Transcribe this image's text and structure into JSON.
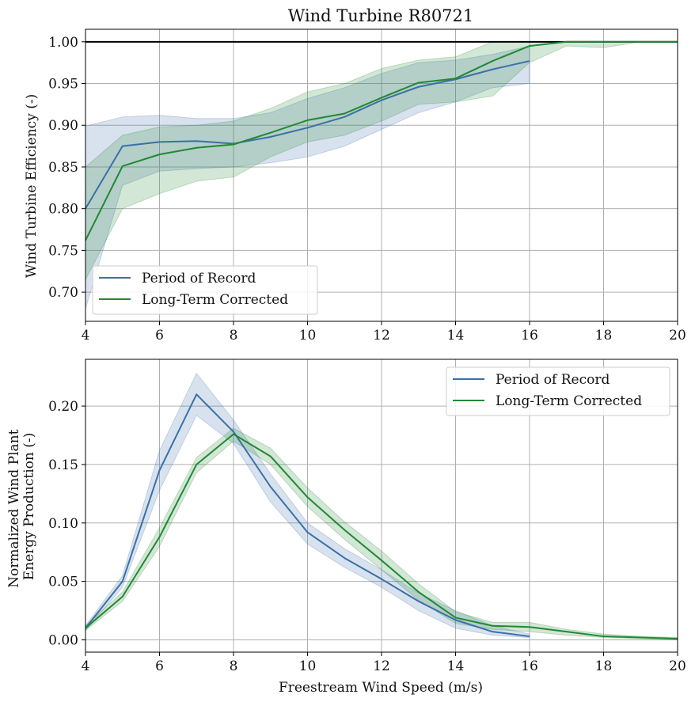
{
  "colors": {
    "period_of_record": "#3a70a8",
    "long_term_corrected": "#228833"
  },
  "chart_data": [
    {
      "type": "line",
      "title": "Wind Turbine R80721",
      "xlabel": "",
      "ylabel": "Wind Turbine Efficiency (-)",
      "xlim": [
        4,
        20
      ],
      "ylim": [
        0.665,
        1.015
      ],
      "xticks": [
        4,
        6,
        8,
        10,
        12,
        14,
        16,
        18,
        20
      ],
      "yticks": [
        0.7,
        0.75,
        0.8,
        0.85,
        0.9,
        0.95,
        1.0
      ],
      "xtick_labels": [
        "4",
        "6",
        "8",
        "10",
        "12",
        "14",
        "16",
        "18",
        "20"
      ],
      "ytick_labels": [
        "0.70",
        "0.75",
        "0.80",
        "0.85",
        "0.90",
        "0.95",
        "1.00"
      ],
      "grid": true,
      "reference_line_y": 1.0,
      "legend_position": "lower-left",
      "series": [
        {
          "name": "Period of Record",
          "color_key": "period_of_record",
          "x": [
            4,
            5,
            6,
            7,
            8,
            9,
            10,
            11,
            12,
            13,
            14,
            15,
            16
          ],
          "y": [
            0.8,
            0.875,
            0.88,
            0.881,
            0.878,
            0.886,
            0.897,
            0.91,
            0.93,
            0.946,
            0.955,
            0.967,
            0.977
          ],
          "lower": [
            0.68,
            0.828,
            0.845,
            0.848,
            0.85,
            0.855,
            0.862,
            0.875,
            0.895,
            0.915,
            0.928,
            0.945,
            0.95
          ],
          "upper": [
            0.899,
            0.91,
            0.912,
            0.908,
            0.908,
            0.915,
            0.932,
            0.945,
            0.962,
            0.975,
            0.978,
            0.985,
            0.995
          ]
        },
        {
          "name": "Long-Term Corrected",
          "color_key": "long_term_corrected",
          "x": [
            4,
            5,
            6,
            7,
            8,
            9,
            10,
            11,
            12,
            13,
            14,
            15,
            16,
            17,
            18,
            19,
            20
          ],
          "y": [
            0.762,
            0.851,
            0.865,
            0.873,
            0.877,
            0.891,
            0.906,
            0.914,
            0.933,
            0.951,
            0.956,
            0.977,
            0.995,
            1.0,
            1.0,
            1.0,
            1.0
          ],
          "lower": [
            0.715,
            0.8,
            0.818,
            0.833,
            0.838,
            0.862,
            0.88,
            0.888,
            0.905,
            0.925,
            0.928,
            0.935,
            0.975,
            0.995,
            0.993,
            1.0,
            1.0
          ],
          "upper": [
            0.85,
            0.888,
            0.898,
            0.9,
            0.905,
            0.92,
            0.94,
            0.95,
            0.968,
            0.978,
            0.982,
            1.0,
            1.0,
            1.0,
            1.0,
            1.0,
            1.0
          ]
        }
      ]
    },
    {
      "type": "line",
      "title": "",
      "xlabel": "Freestream Wind Speed (m/s)",
      "ylabel": [
        "Normalized Wind Plant",
        "Energy Production (-)"
      ],
      "xlim": [
        4,
        20
      ],
      "ylim": [
        -0.0105,
        0.24
      ],
      "xticks": [
        4,
        6,
        8,
        10,
        12,
        14,
        16,
        18,
        20
      ],
      "yticks": [
        0.0,
        0.05,
        0.1,
        0.15,
        0.2
      ],
      "xtick_labels": [
        "4",
        "6",
        "8",
        "10",
        "12",
        "14",
        "16",
        "18",
        "20"
      ],
      "ytick_labels": [
        "0.00",
        "0.05",
        "0.10",
        "0.15",
        "0.20"
      ],
      "grid": true,
      "legend_position": "upper-right",
      "series": [
        {
          "name": "Period of Record",
          "color_key": "period_of_record",
          "x": [
            4,
            5,
            6,
            7,
            8,
            9,
            10,
            11,
            12,
            13,
            14,
            15,
            16
          ],
          "y": [
            0.01,
            0.05,
            0.145,
            0.21,
            0.178,
            0.131,
            0.092,
            0.07,
            0.052,
            0.033,
            0.017,
            0.007,
            0.003
          ],
          "lower": [
            0.008,
            0.045,
            0.128,
            0.192,
            0.168,
            0.118,
            0.082,
            0.062,
            0.045,
            0.025,
            0.01,
            0.004,
            0.002
          ],
          "upper": [
            0.012,
            0.055,
            0.162,
            0.228,
            0.188,
            0.142,
            0.1,
            0.078,
            0.06,
            0.04,
            0.025,
            0.012,
            0.005
          ]
        },
        {
          "name": "Long-Term Corrected",
          "color_key": "long_term_corrected",
          "x": [
            4,
            5,
            6,
            7,
            8,
            9,
            10,
            11,
            12,
            13,
            14,
            15,
            16,
            17,
            18,
            19,
            20
          ],
          "y": [
            0.01,
            0.037,
            0.088,
            0.15,
            0.176,
            0.157,
            0.122,
            0.094,
            0.068,
            0.041,
            0.019,
            0.012,
            0.011,
            0.007,
            0.003,
            0.002,
            0.001
          ],
          "lower": [
            0.008,
            0.033,
            0.08,
            0.143,
            0.17,
            0.15,
            0.114,
            0.086,
            0.06,
            0.034,
            0.014,
            0.009,
            0.007,
            0.004,
            0.002,
            0.001,
            0.0
          ],
          "upper": [
            0.012,
            0.041,
            0.096,
            0.156,
            0.181,
            0.164,
            0.13,
            0.101,
            0.076,
            0.048,
            0.024,
            0.015,
            0.015,
            0.009,
            0.005,
            0.003,
            0.002
          ]
        }
      ]
    }
  ]
}
